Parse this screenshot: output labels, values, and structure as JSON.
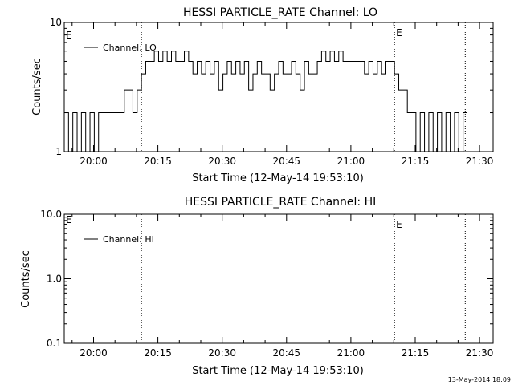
{
  "chart_data": [
    {
      "type": "line",
      "title": "HESSI PARTICLE_RATE Channel: LO",
      "xlabel": "Start Time (12-May-14 19:53:10)",
      "ylabel": "Counts/sec",
      "yscale": "log",
      "xlim": [
        "19:53:10",
        "21:33:10"
      ],
      "ylim": [
        1,
        10
      ],
      "yticks": [
        "1",
        "10"
      ],
      "xticks": [
        "20:00",
        "20:15",
        "20:30",
        "20:45",
        "21:00",
        "21:15",
        "21:30"
      ],
      "legend": {
        "position": "top-left"
      },
      "markers": [
        {
          "time": "20:11:10",
          "label": ""
        },
        {
          "time": "21:10:10",
          "label": "E"
        },
        {
          "time": "21:26:40",
          "label": ""
        }
      ],
      "edge_label": "E",
      "series": [
        {
          "name": "Channel: LO",
          "x": [
            "19:53:10",
            "19:54:10",
            "19:55:10",
            "19:56:10",
            "19:57:10",
            "19:58:10",
            "19:59:10",
            "20:00:10",
            "20:01:10",
            "20:02:10",
            "20:03:10",
            "20:04:10",
            "20:05:10",
            "20:06:10",
            "20:07:10",
            "20:08:10",
            "20:09:10",
            "20:10:10",
            "20:11:10",
            "20:12:10",
            "20:13:10",
            "20:14:10",
            "20:15:10",
            "20:16:10",
            "20:17:10",
            "20:18:10",
            "20:19:10",
            "20:20:10",
            "20:21:10",
            "20:22:10",
            "20:23:10",
            "20:24:10",
            "20:25:10",
            "20:26:10",
            "20:27:10",
            "20:28:10",
            "20:29:10",
            "20:30:10",
            "20:31:10",
            "20:32:10",
            "20:33:10",
            "20:34:10",
            "20:35:10",
            "20:36:10",
            "20:37:10",
            "20:38:10",
            "20:39:10",
            "20:40:10",
            "20:41:10",
            "20:42:10",
            "20:43:10",
            "20:44:10",
            "20:45:10",
            "20:46:10",
            "20:47:10",
            "20:48:10",
            "20:49:10",
            "20:50:10",
            "20:51:10",
            "20:52:10",
            "20:53:10",
            "20:54:10",
            "20:55:10",
            "20:56:10",
            "20:57:10",
            "20:58:10",
            "20:59:10",
            "21:00:10",
            "21:01:10",
            "21:02:10",
            "21:03:10",
            "21:04:10",
            "21:05:10",
            "21:06:10",
            "21:07:10",
            "21:08:10",
            "21:09:10",
            "21:10:10",
            "21:11:10",
            "21:12:10",
            "21:13:10",
            "21:14:10",
            "21:15:10",
            "21:16:10",
            "21:17:10",
            "21:18:10",
            "21:19:10",
            "21:20:10",
            "21:21:10",
            "21:22:10",
            "21:23:10",
            "21:24:10",
            "21:25:10",
            "21:26:10"
          ],
          "values": [
            2,
            1,
            2,
            1,
            2,
            1,
            2,
            1,
            2,
            2,
            2,
            2,
            2,
            2,
            3,
            3,
            2,
            3,
            4,
            5,
            5,
            6,
            5,
            6,
            5,
            6,
            5,
            5,
            6,
            5,
            4,
            5,
            4,
            5,
            4,
            5,
            3,
            4,
            5,
            4,
            5,
            4,
            5,
            3,
            4,
            5,
            4,
            4,
            3,
            4,
            5,
            4,
            4,
            5,
            4,
            3,
            5,
            4,
            4,
            5,
            6,
            5,
            6,
            5,
            6,
            5,
            5,
            5,
            5,
            5,
            4,
            5,
            4,
            5,
            4,
            5,
            5,
            4,
            3,
            3,
            2,
            2,
            1,
            2,
            1,
            2,
            1,
            2,
            1,
            2,
            1,
            2,
            1,
            2
          ]
        }
      ]
    },
    {
      "type": "line",
      "title": "HESSI PARTICLE_RATE Channel: HI",
      "xlabel": "Start Time (12-May-14 19:53:10)",
      "ylabel": "Counts/sec",
      "yscale": "log",
      "xlim": [
        "19:53:10",
        "21:33:10"
      ],
      "ylim": [
        0.1,
        10
      ],
      "yticks": [
        "0.1",
        "1.0",
        "10.0"
      ],
      "xticks": [
        "20:00",
        "20:15",
        "20:30",
        "20:45",
        "21:00",
        "21:15",
        "21:30"
      ],
      "legend": {
        "position": "top-left"
      },
      "markers": [
        {
          "time": "20:11:10",
          "label": ""
        },
        {
          "time": "21:10:10",
          "label": "E"
        },
        {
          "time": "21:26:40",
          "label": ""
        }
      ],
      "edge_label": "E",
      "series": [
        {
          "name": "Channel: HI",
          "x": [],
          "values": []
        }
      ]
    }
  ],
  "footer": {
    "timestamp": "13-May-2014 18:09"
  }
}
